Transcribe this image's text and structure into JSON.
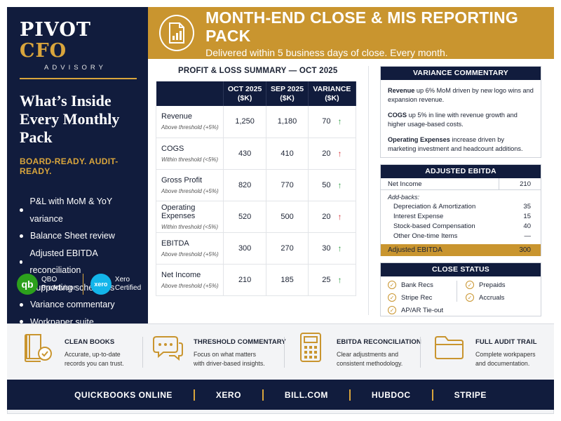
{
  "brand": {
    "name_a": "PIVOT",
    "name_b": "CFO",
    "subtitle": "ADVISORY"
  },
  "sidebar": {
    "title_line1": "What’s Inside",
    "title_line2": "Every Monthly Pack",
    "tagline": "BOARD-READY. AUDIT-READY.",
    "items": [
      "P&L with MoM & YoY variance",
      "Balance Sheet review",
      "Adjusted EBITDA reconciliation",
      "Supporting schedules",
      "Variance commentary",
      "Workpaper suite"
    ],
    "certs": [
      {
        "logo": "qb",
        "line1": "QBO",
        "line2": "ProAdvisor"
      },
      {
        "logo": "xero",
        "line1": "Xero",
        "line2": "Certified"
      }
    ]
  },
  "header": {
    "icon": "report-document-icon",
    "title": "MONTH-END CLOSE & MIS REPORTING PACK",
    "subtitle": "Delivered within 5 business days of close. Every month."
  },
  "pl": {
    "title": "PROFIT & LOSS SUMMARY — OCT 2025",
    "columns": [
      {
        "line1": "OCT 2025",
        "line2": "($K)"
      },
      {
        "line1": "SEP 2025",
        "line2": "($K)"
      },
      {
        "line1": "VARIANCE",
        "line2": "($K)"
      }
    ],
    "rows": [
      {
        "name": "Revenue",
        "note": "Above threshold (+5%)",
        "oct": "1,250",
        "sep": "1,180",
        "var": "70",
        "dir": "up"
      },
      {
        "name": "COGS",
        "note": "Within threshold (<5%)",
        "oct": "430",
        "sep": "410",
        "var": "20",
        "dir": "up-red"
      },
      {
        "name": "Gross Profit",
        "note": "Above threshold (+5%)",
        "oct": "820",
        "sep": "770",
        "var": "50",
        "dir": "up"
      },
      {
        "name": "Operating Expenses",
        "note": "Within threshold (<5%)",
        "oct": "520",
        "sep": "500",
        "var": "20",
        "dir": "up-red"
      },
      {
        "name": "EBITDA",
        "note": "Above threshold (+5%)",
        "oct": "300",
        "sep": "270",
        "var": "30",
        "dir": "up"
      },
      {
        "name": "Net Income",
        "note": "Above threshold (+5%)",
        "oct": "210",
        "sep": "185",
        "var": "25",
        "dir": "up"
      }
    ]
  },
  "variance": {
    "title": "VARIANCE COMMENTARY",
    "items": [
      {
        "term": "Revenue",
        "text": " up 6% MoM driven by new logo wins and expansion revenue."
      },
      {
        "term": "COGS",
        "text": " up 5% in line with revenue growth and higher usage-based costs."
      },
      {
        "term": "Operating Expenses",
        "text": " increase driven by marketing investment and headcount additions."
      }
    ]
  },
  "ebitda": {
    "title": "ADJUSTED EBITDA",
    "net_income_label": "Net Income",
    "net_income_value": "210",
    "addbacks_label": "Add-backs:",
    "addbacks": [
      {
        "label": "Depreciation & Amortization",
        "value": "35"
      },
      {
        "label": "Interest Expense",
        "value": "15"
      },
      {
        "label": "Stock-based Compensation",
        "value": "40"
      },
      {
        "label": "Other One-time Items",
        "value": "—"
      }
    ],
    "total_label": "Adjusted EBITDA",
    "total_value": "300"
  },
  "close_status": {
    "title": "CLOSE STATUS",
    "left": [
      "Bank Recs",
      "Stripe Rec",
      "AP/AR Tie-out"
    ],
    "right": [
      "Prepaids",
      "Accruals"
    ]
  },
  "features": [
    {
      "icon": "book-check-icon",
      "title": "CLEAN BOOKS",
      "line1": "Accurate, up-to-date",
      "line2": "records you can trust."
    },
    {
      "icon": "chat-bubbles-icon",
      "title": "THRESHOLD COMMENTARY",
      "line1": "Focus on what matters",
      "line2": "with driver-based insights."
    },
    {
      "icon": "calculator-icon",
      "title": "EBITDA RECONCILIATION",
      "line1": "Clear adjustments and",
      "line2": "consistent methodology."
    },
    {
      "icon": "folder-icon",
      "title": "FULL AUDIT TRAIL",
      "line1": "Complete workpapers",
      "line2": "and documentation."
    }
  ],
  "integrations": [
    "QUICKBOOKS ONLINE",
    "XERO",
    "BILL.COM",
    "HUBDOC",
    "STRIPE"
  ],
  "colors": {
    "navy": "#111c3d",
    "gold": "#c9952f",
    "up": "#2f9e44",
    "down": "#d6333a"
  }
}
